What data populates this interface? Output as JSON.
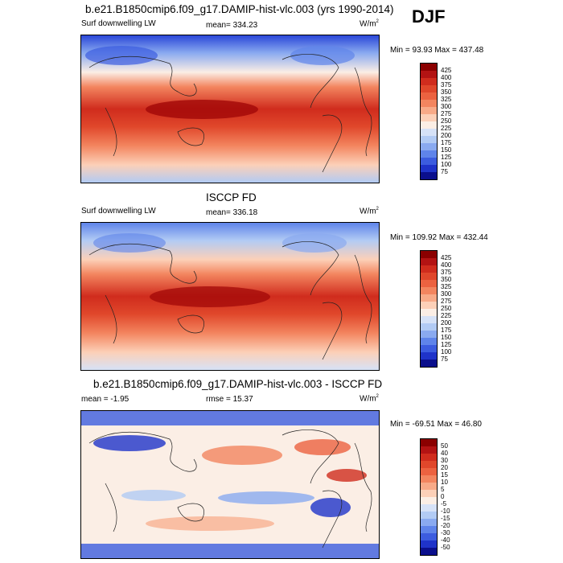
{
  "season": "DJF",
  "panels": [
    {
      "title": "b.e21.B1850cmip6.f09_g17.DAMIP-hist-vlc.003 (yrs 1990-2014)",
      "left_label": "Surf downwelling LW",
      "center_label": "mean= 334.23",
      "units": "W/m",
      "units_sup": "2",
      "minmax": "Min = 93.93 Max = 437.48",
      "colorbar": {
        "labels": [
          "425",
          "400",
          "375",
          "350",
          "325",
          "300",
          "275",
          "250",
          "225",
          "200",
          "175",
          "150",
          "125",
          "100",
          "75"
        ],
        "colors": [
          "#8b0000",
          "#b31313",
          "#d02c1d",
          "#e0472b",
          "#ec6240",
          "#f3855f",
          "#f8aa88",
          "#fcd0b8",
          "#fbeee5",
          "#d6e2f7",
          "#b2cbf4",
          "#8aaaf0",
          "#5f84ea",
          "#3c5cdf",
          "#1f33c9",
          "#0b0f8c"
        ]
      }
    },
    {
      "title": "ISCCP FD",
      "left_label": "Surf downwelling LW",
      "center_label": "mean= 336.18",
      "units": "W/m",
      "units_sup": "2",
      "minmax": "Min = 109.92 Max = 432.44",
      "colorbar": {
        "labels": [
          "425",
          "400",
          "375",
          "350",
          "325",
          "300",
          "275",
          "250",
          "225",
          "200",
          "175",
          "150",
          "125",
          "100",
          "75"
        ],
        "colors": [
          "#8b0000",
          "#b31313",
          "#d02c1d",
          "#e0472b",
          "#ec6240",
          "#f3855f",
          "#f8aa88",
          "#fcd0b8",
          "#fbeee5",
          "#d6e2f7",
          "#b2cbf4",
          "#8aaaf0",
          "#5f84ea",
          "#3c5cdf",
          "#1f33c9",
          "#0b0f8c"
        ]
      }
    },
    {
      "title": "b.e21.B1850cmip6.f09_g17.DAMIP-hist-vlc.003 - ISCCP FD",
      "left_label": "mean = -1.95",
      "center_label": "rmse = 15.37",
      "units": "W/m",
      "units_sup": "2",
      "minmax": "Min = -69.51 Max = 46.80",
      "colorbar": {
        "labels": [
          "50",
          "40",
          "30",
          "20",
          "15",
          "10",
          "5",
          "0",
          "-5",
          "-10",
          "-15",
          "-20",
          "-30",
          "-40",
          "-50"
        ],
        "colors": [
          "#8b0000",
          "#b31313",
          "#d02c1d",
          "#e0472b",
          "#ec6240",
          "#f3855f",
          "#f8aa88",
          "#fcd0b8",
          "#fbeee5",
          "#d6e2f7",
          "#b2cbf4",
          "#8aaaf0",
          "#5f84ea",
          "#3c5cdf",
          "#1f33c9",
          "#0b0f8c"
        ]
      }
    }
  ],
  "chart_data": [
    {
      "type": "heatmap",
      "title": "b.e21.B1850cmip6.f09_g17.DAMIP-hist-vlc.003 (yrs 1990-2014)",
      "variable": "Surf downwelling LW",
      "units": "W/m2",
      "season": "DJF",
      "mean": 334.23,
      "min": 93.93,
      "max": 437.48,
      "contour_levels": [
        75,
        100,
        125,
        150,
        175,
        200,
        225,
        250,
        275,
        300,
        325,
        350,
        375,
        400,
        425
      ]
    },
    {
      "type": "heatmap",
      "title": "ISCCP FD",
      "variable": "Surf downwelling LW",
      "units": "W/m2",
      "season": "DJF",
      "mean": 336.18,
      "min": 109.92,
      "max": 432.44,
      "contour_levels": [
        75,
        100,
        125,
        150,
        175,
        200,
        225,
        250,
        275,
        300,
        325,
        350,
        375,
        400,
        425
      ]
    },
    {
      "type": "heatmap",
      "title": "b.e21.B1850cmip6.f09_g17.DAMIP-hist-vlc.003 - ISCCP FD",
      "variable": "Surf downwelling LW difference",
      "units": "W/m2",
      "season": "DJF",
      "mean": -1.95,
      "rmse": 15.37,
      "min": -69.51,
      "max": 46.8,
      "contour_levels": [
        -50,
        -40,
        -30,
        -20,
        -15,
        -10,
        -5,
        0,
        5,
        10,
        15,
        20,
        30,
        40,
        50
      ]
    }
  ]
}
